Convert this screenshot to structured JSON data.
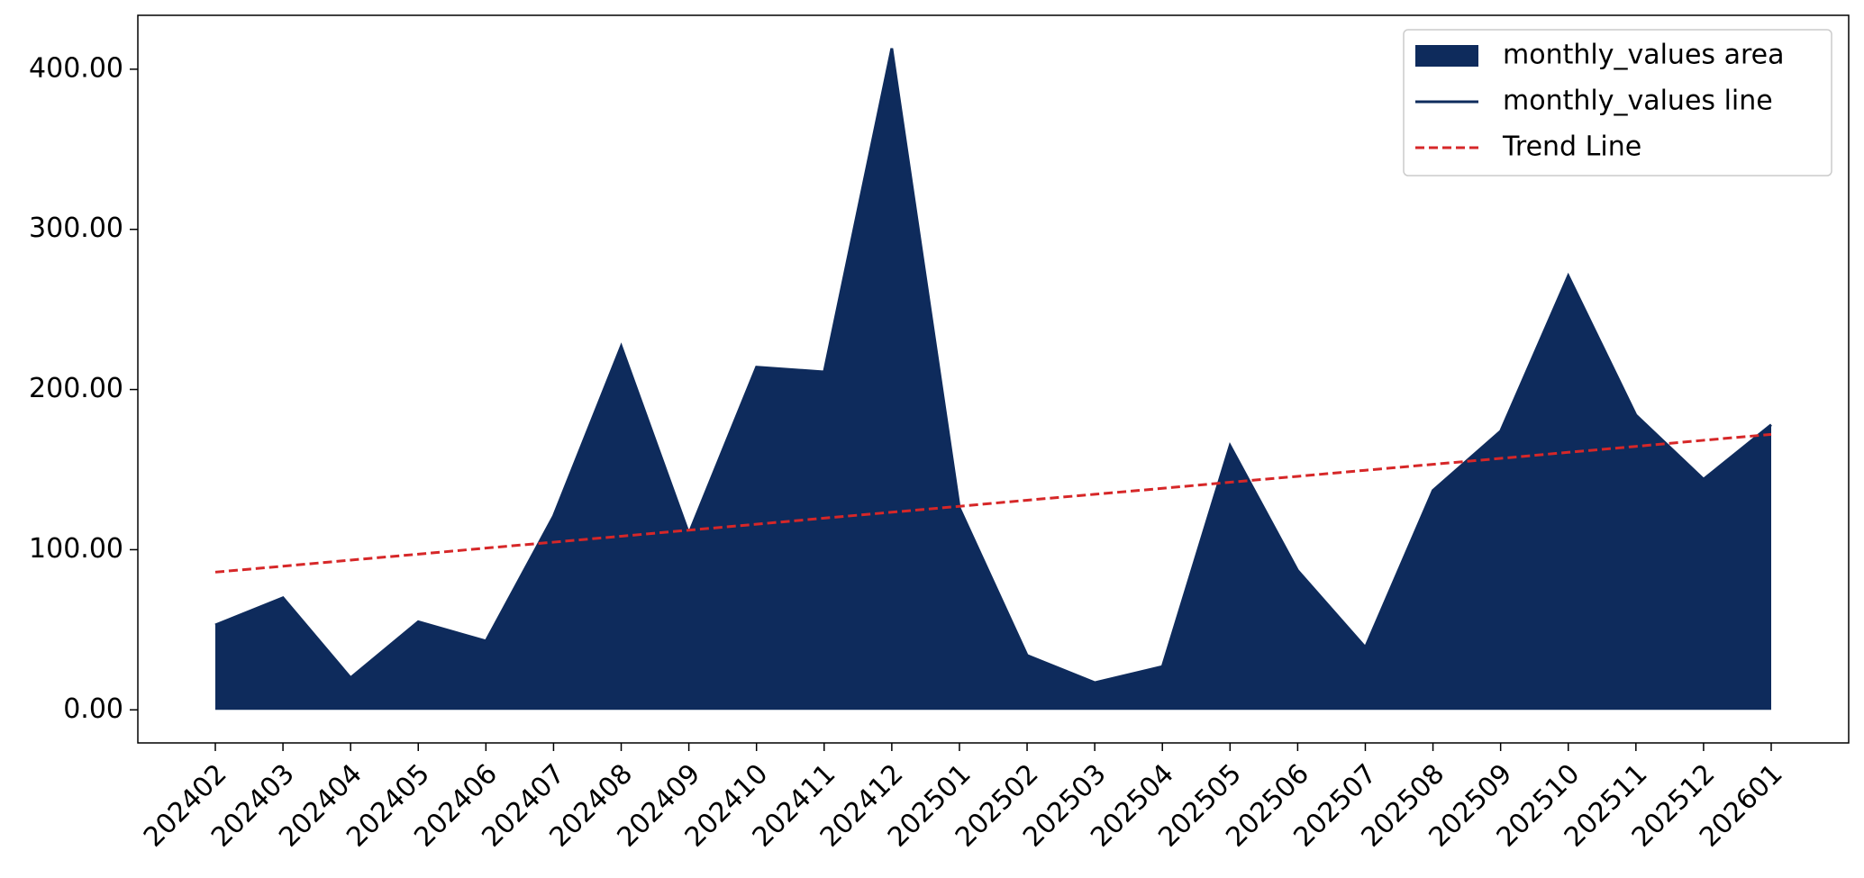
{
  "chart_data": {
    "type": "area",
    "categories": [
      "202402",
      "202403",
      "202404",
      "202405",
      "202406",
      "202407",
      "202408",
      "202409",
      "202410",
      "202411",
      "202412",
      "202501",
      "202502",
      "202503",
      "202504",
      "202505",
      "202506",
      "202507",
      "202508",
      "202509",
      "202510",
      "202511",
      "202512",
      "202601"
    ],
    "series": [
      {
        "name": "monthly_values area",
        "color": "#0e2b5c",
        "style": "area",
        "values": [
          53,
          70,
          20,
          55,
          43,
          121,
          227,
          110,
          214,
          211,
          413,
          126,
          34,
          17,
          27,
          165,
          87,
          39,
          137,
          174,
          271,
          184,
          144,
          178
        ]
      },
      {
        "name": "monthly_values line",
        "color": "#0e2b5c",
        "style": "line",
        "values": [
          53,
          70,
          20,
          55,
          43,
          121,
          227,
          110,
          214,
          211,
          413,
          126,
          34,
          17,
          27,
          165,
          87,
          39,
          137,
          174,
          271,
          184,
          144,
          178
        ]
      },
      {
        "name": "Trend Line",
        "color": "#d62728",
        "style": "dashed",
        "values": [
          86,
          89.7,
          93.5,
          97.2,
          101.0,
          104.7,
          108.4,
          112.2,
          115.9,
          119.7,
          123.4,
          127.1,
          130.9,
          134.6,
          138.3,
          142.1,
          145.8,
          149.6,
          153.3,
          157.0,
          160.8,
          164.5,
          168.3,
          172.0
        ]
      }
    ],
    "ylim": [
      -20.65,
      433.65
    ],
    "yticks": [
      {
        "value": 0,
        "label": "0.00"
      },
      {
        "value": 100,
        "label": "100.00"
      },
      {
        "value": 200,
        "label": "200.00"
      },
      {
        "value": 300,
        "label": "300.00"
      },
      {
        "value": 400,
        "label": "400.00"
      }
    ],
    "legend": "upper right",
    "grid": false
  }
}
